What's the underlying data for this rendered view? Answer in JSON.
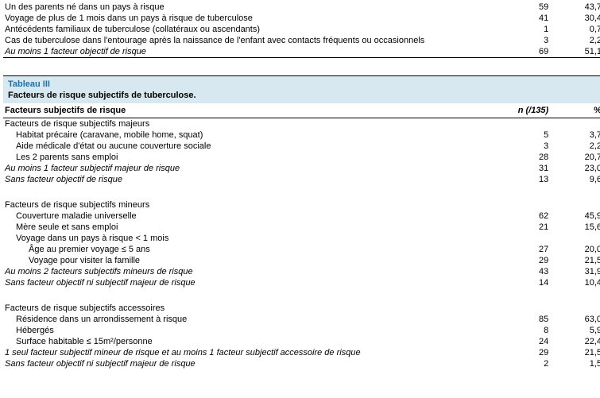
{
  "table1": {
    "rows": [
      {
        "label": "Un des parents né dans un pays à risque",
        "n": "59",
        "pct": "43,7",
        "cls": ""
      },
      {
        "label": "Voyage de plus de 1 mois dans un pays à risque de tuberculose",
        "n": "41",
        "pct": "30,4",
        "cls": ""
      },
      {
        "label": "Antécédents familiaux de tuberculose (collatéraux ou ascendants)",
        "n": "1",
        "pct": "0,7",
        "cls": ""
      },
      {
        "label": "Cas de tuberculose dans l'entourage après la naissance de l'enfant avec contacts fréquents ou occasionnels",
        "n": "3",
        "pct": "2,2",
        "cls": ""
      },
      {
        "label": "Au moins 1 facteur objectif de risque",
        "n": "69",
        "pct": "51,1",
        "cls": "italic"
      }
    ]
  },
  "table2": {
    "header_title": "Tableau III",
    "header_subtitle": "Facteurs de risque subjectifs de tuberculose.",
    "col1": "Facteurs subjectifs de risque",
    "col2": "n (/135)",
    "col3": "%",
    "sections": [
      {
        "spacer_before": false,
        "rows": [
          {
            "label": "Facteurs de risque subjectifs majeurs",
            "n": "",
            "pct": "",
            "cls": ""
          },
          {
            "label": "Habitat précaire (caravane, mobile home, squat)",
            "n": "5",
            "pct": "3,7",
            "cls": "indent1"
          },
          {
            "label": "Aide médicale d'état ou aucune couverture sociale",
            "n": "3",
            "pct": "2,2",
            "cls": "indent1"
          },
          {
            "label": "Les 2 parents sans emploi",
            "n": "28",
            "pct": "20,7",
            "cls": "indent1"
          },
          {
            "label": "Au moins 1 facteur subjectif majeur de risque",
            "n": "31",
            "pct": "23,0",
            "cls": "italic"
          },
          {
            "label": "Sans facteur objectif de risque",
            "n": "13",
            "pct": "9,6",
            "cls": "italic"
          }
        ]
      },
      {
        "spacer_before": true,
        "rows": [
          {
            "label": "Facteurs de risque subjectifs mineurs",
            "n": "",
            "pct": "",
            "cls": ""
          },
          {
            "label": "Couverture maladie universelle",
            "n": "62",
            "pct": "45,9",
            "cls": "indent1"
          },
          {
            "label": "Mère seule et sans emploi",
            "n": "21",
            "pct": "15,6",
            "cls": "indent1"
          },
          {
            "label": "Voyage dans un pays à risque < 1 mois",
            "n": "",
            "pct": "",
            "cls": "indent1"
          },
          {
            "label": "Âge au premier voyage ≤ 5 ans",
            "n": "27",
            "pct": "20,0",
            "cls": "indent2"
          },
          {
            "label": "Voyage pour visiter la famille",
            "n": "29",
            "pct": "21,5",
            "cls": "indent2"
          },
          {
            "label": "Au moins 2 facteurs subjectifs mineurs de risque",
            "n": "43",
            "pct": "31,9",
            "cls": "italic"
          },
          {
            "label": "Sans facteur objectif ni subjectif majeur de risque",
            "n": "14",
            "pct": "10,4",
            "cls": "italic"
          }
        ]
      },
      {
        "spacer_before": true,
        "rows": [
          {
            "label": "Facteurs de risque subjectifs accessoires",
            "n": "",
            "pct": "",
            "cls": ""
          },
          {
            "label": "Résidence dans un arrondissement à risque",
            "n": "85",
            "pct": "63,0",
            "cls": "indent1"
          },
          {
            "label": "Hébergés",
            "n": "8",
            "pct": "5,9",
            "cls": "indent1"
          },
          {
            "label": "Surface habitable ≤ 15m²/personne",
            "n": "24",
            "pct": "22,4",
            "cls": "indent1"
          },
          {
            "label": "1 seul facteur subjectif mineur de risque et au moins 1 facteur subjectif accessoire de risque",
            "n": "29",
            "pct": "21,5",
            "cls": "italic"
          },
          {
            "label": "Sans facteur objectif ni subjectif majeur de risque",
            "n": "2",
            "pct": "1,5",
            "cls": "italic"
          }
        ]
      }
    ]
  }
}
